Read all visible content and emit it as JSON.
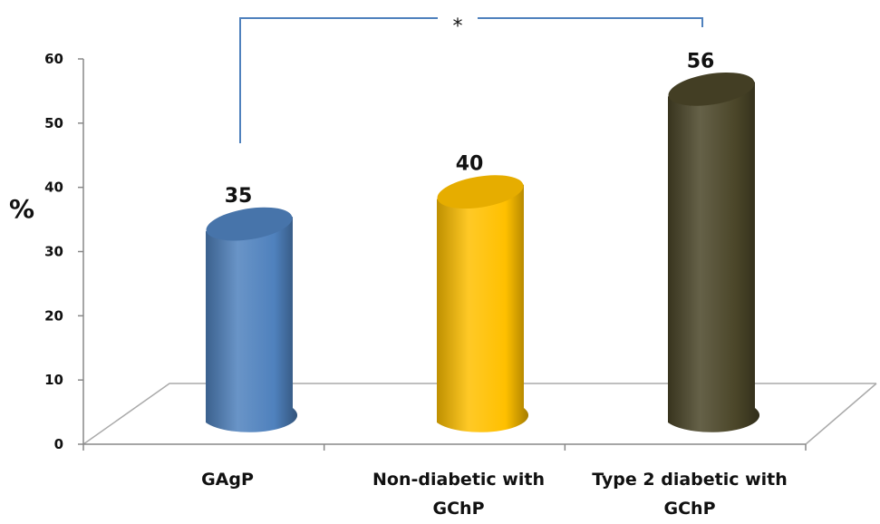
{
  "chart_data": {
    "type": "bar",
    "title": "",
    "xlabel": "",
    "ylabel": "%",
    "ylim": [
      0,
      60
    ],
    "yticks": [
      0,
      10,
      20,
      30,
      40,
      50,
      60
    ],
    "grid": false,
    "legend": "none",
    "categories": [
      [
        "GAgP"
      ],
      [
        "Non-diabetic with",
        "GChP"
      ],
      [
        "Type 2 diabetic with",
        "GChP"
      ]
    ],
    "values": [
      35,
      40,
      56
    ],
    "colors": [
      "#4f81bd",
      "#ffc000",
      "#4a4528"
    ],
    "significance": {
      "between": [
        0,
        2
      ],
      "label": "*",
      "color": "#4f81bd"
    }
  }
}
